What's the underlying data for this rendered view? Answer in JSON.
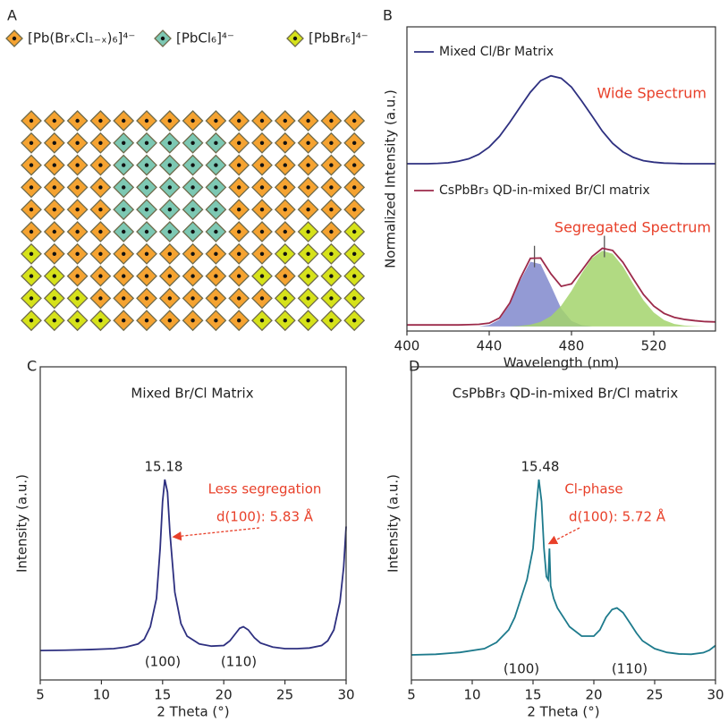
{
  "panel_labels": [
    "A",
    "B",
    "C",
    "D"
  ],
  "lattice": {
    "legend": [
      {
        "text": "[Pb(BrₓCl₁₋ₓ)₆]⁴⁻",
        "color": "#f5a331"
      },
      {
        "text": "[PbCl₆]⁴⁻",
        "color": "#7dc8b3"
      },
      {
        "text": "[PbBr₆]⁴⁻",
        "color": "#d6e21a"
      }
    ],
    "rows": [
      [
        0,
        0,
        0,
        0,
        0,
        0,
        0,
        0,
        0,
        0,
        0,
        0,
        0,
        0,
        0
      ],
      [
        0,
        0,
        0,
        0,
        1,
        1,
        1,
        1,
        1,
        0,
        0,
        0,
        0,
        0,
        0
      ],
      [
        0,
        0,
        0,
        0,
        1,
        1,
        1,
        1,
        1,
        0,
        0,
        0,
        0,
        0,
        0
      ],
      [
        0,
        0,
        0,
        0,
        1,
        1,
        1,
        1,
        1,
        0,
        0,
        0,
        0,
        0,
        0
      ],
      [
        0,
        0,
        0,
        0,
        1,
        1,
        1,
        1,
        1,
        0,
        0,
        0,
        0,
        0,
        0
      ],
      [
        0,
        0,
        0,
        0,
        1,
        1,
        1,
        1,
        1,
        0,
        0,
        0,
        2,
        0,
        2
      ],
      [
        2,
        0,
        0,
        0,
        0,
        0,
        0,
        0,
        0,
        0,
        0,
        2,
        2,
        2,
        2
      ],
      [
        2,
        2,
        0,
        0,
        0,
        0,
        0,
        0,
        0,
        0,
        2,
        0,
        2,
        2,
        2
      ],
      [
        2,
        2,
        2,
        0,
        0,
        0,
        0,
        0,
        0,
        0,
        0,
        2,
        2,
        2,
        2
      ],
      [
        2,
        2,
        2,
        2,
        0,
        0,
        0,
        0,
        0,
        0,
        2,
        2,
        2,
        2,
        2
      ]
    ]
  },
  "chart_data": [
    {
      "type": "line",
      "xlabel": "Wavelength (nm)",
      "ylabel": "Normalized Intensity (a.u.)",
      "x": [
        400,
        405,
        410,
        415,
        420,
        425,
        430,
        435,
        440,
        445,
        450,
        455,
        460,
        465,
        470,
        475,
        480,
        485,
        490,
        495,
        500,
        505,
        510,
        515,
        520,
        525,
        530,
        535,
        540,
        545,
        550
      ],
      "xlim": [
        400,
        550
      ],
      "xticks": [
        400,
        440,
        480,
        520
      ],
      "ylim": [
        0,
        1
      ],
      "areas": [
        {
          "color": "#8088cc",
          "values": [
            0.015,
            0.015,
            0.015,
            0.015,
            0.015,
            0.015,
            0.015,
            0.015,
            0.02,
            0.038,
            0.087,
            0.165,
            0.228,
            0.22,
            0.149,
            0.074,
            0.033,
            0.019,
            0.015,
            0.015,
            0.015,
            0.015,
            0.015,
            0.015,
            0.015,
            0.015,
            0.015,
            0.015,
            0.015,
            0.015,
            0.015
          ]
        },
        {
          "color": "#a3d46c",
          "values": [
            0.015,
            0.015,
            0.015,
            0.015,
            0.015,
            0.015,
            0.015,
            0.015,
            0.015,
            0.015,
            0.015,
            0.017,
            0.021,
            0.03,
            0.049,
            0.083,
            0.132,
            0.19,
            0.24,
            0.264,
            0.254,
            0.212,
            0.155,
            0.101,
            0.061,
            0.036,
            0.023,
            0.018,
            0.016,
            0.015,
            0.015
          ]
        }
      ],
      "series": [
        {
          "name": "Mixed Cl/Br Matrix",
          "color": "#2e3080",
          "values": [
            0.55,
            0.55,
            0.55,
            0.551,
            0.553,
            0.558,
            0.566,
            0.581,
            0.605,
            0.64,
            0.686,
            0.736,
            0.785,
            0.823,
            0.839,
            0.831,
            0.802,
            0.756,
            0.707,
            0.657,
            0.617,
            0.589,
            0.571,
            0.56,
            0.555,
            0.552,
            0.551,
            0.55,
            0.55,
            0.55,
            0.55
          ]
        },
        {
          "name": "CsPbBr₃ QD-in-mixed Br/Cl matrix",
          "color": "#9c2a4a",
          "values": [
            0.02,
            0.02,
            0.02,
            0.02,
            0.02,
            0.02,
            0.021,
            0.022,
            0.026,
            0.043,
            0.092,
            0.172,
            0.239,
            0.24,
            0.188,
            0.147,
            0.155,
            0.199,
            0.245,
            0.272,
            0.265,
            0.226,
            0.172,
            0.12,
            0.082,
            0.058,
            0.045,
            0.038,
            0.034,
            0.031,
            0.03
          ]
        }
      ],
      "peak_markers": [
        462,
        496
      ],
      "annotations": [
        {
          "text": "Wide Spectrum",
          "color": "#e8402a"
        },
        {
          "text": "Segregated Spectrum",
          "color": "#e8402a"
        }
      ]
    },
    {
      "type": "line",
      "title": "Mixed Br/Cl Matrix",
      "xlabel": "2 Theta (°)",
      "ylabel": "Intensity (a.u.)",
      "x": [
        5,
        7,
        9,
        11,
        12,
        13,
        13.5,
        14,
        14.5,
        14.8,
        15,
        15.18,
        15.4,
        15.6,
        16,
        16.5,
        17,
        18,
        19,
        20,
        20.5,
        21,
        21.3,
        21.6,
        22,
        22.5,
        23,
        24,
        25,
        26,
        27,
        28,
        28.5,
        29,
        29.5,
        29.8,
        30
      ],
      "xlim": [
        5,
        30
      ],
      "xticks": [
        5,
        10,
        15,
        20,
        25,
        30
      ],
      "ylim": [
        0,
        1
      ],
      "series": [
        {
          "color": "#2e3080",
          "values": [
            0.094,
            0.095,
            0.097,
            0.1,
            0.105,
            0.115,
            0.13,
            0.17,
            0.26,
            0.42,
            0.57,
            0.64,
            0.6,
            0.47,
            0.28,
            0.18,
            0.14,
            0.115,
            0.108,
            0.11,
            0.125,
            0.15,
            0.165,
            0.17,
            0.16,
            0.135,
            0.118,
            0.105,
            0.1,
            0.1,
            0.102,
            0.11,
            0.125,
            0.16,
            0.25,
            0.36,
            0.49
          ]
        }
      ],
      "annotations": [
        {
          "text": "15.18"
        },
        {
          "text": "Less segregation",
          "color": "#e8402a"
        },
        {
          "text": "d(100): 5.83 Å",
          "color": "#e8402a"
        },
        {
          "text": "(100)"
        },
        {
          "text": "(110)"
        }
      ]
    },
    {
      "type": "line",
      "title": "CsPbBr₃ QD-in-mixed Br/Cl matrix",
      "xlabel": "2 Theta (°)",
      "ylabel": "Intensity (a.u.)",
      "x": [
        5,
        7,
        9,
        11,
        12,
        13,
        13.5,
        14,
        14.5,
        15,
        15.2,
        15.48,
        15.7,
        15.9,
        16.1,
        16.25,
        16.35,
        16.45,
        16.7,
        17,
        18,
        19,
        20,
        20.5,
        21,
        21.5,
        21.9,
        22.4,
        23,
        23.5,
        24,
        25,
        26,
        27,
        28,
        29,
        29.5,
        30
      ],
      "xlim": [
        5,
        30
      ],
      "xticks": [
        5,
        10,
        15,
        20,
        25,
        30
      ],
      "ylim": [
        0,
        1
      ],
      "series": [
        {
          "color": "#1d7a8c",
          "values": [
            0.08,
            0.082,
            0.088,
            0.1,
            0.12,
            0.16,
            0.2,
            0.26,
            0.32,
            0.42,
            0.52,
            0.64,
            0.57,
            0.42,
            0.33,
            0.32,
            0.42,
            0.3,
            0.26,
            0.23,
            0.17,
            0.14,
            0.14,
            0.16,
            0.2,
            0.225,
            0.23,
            0.215,
            0.18,
            0.15,
            0.125,
            0.1,
            0.088,
            0.083,
            0.082,
            0.087,
            0.095,
            0.11
          ]
        }
      ],
      "annotations": [
        {
          "text": "15.48"
        },
        {
          "text": "Cl-phase",
          "color": "#e8402a"
        },
        {
          "text": "d(100): 5.72 Å",
          "color": "#e8402a"
        },
        {
          "text": "(100)"
        },
        {
          "text": "(110)"
        }
      ]
    }
  ]
}
